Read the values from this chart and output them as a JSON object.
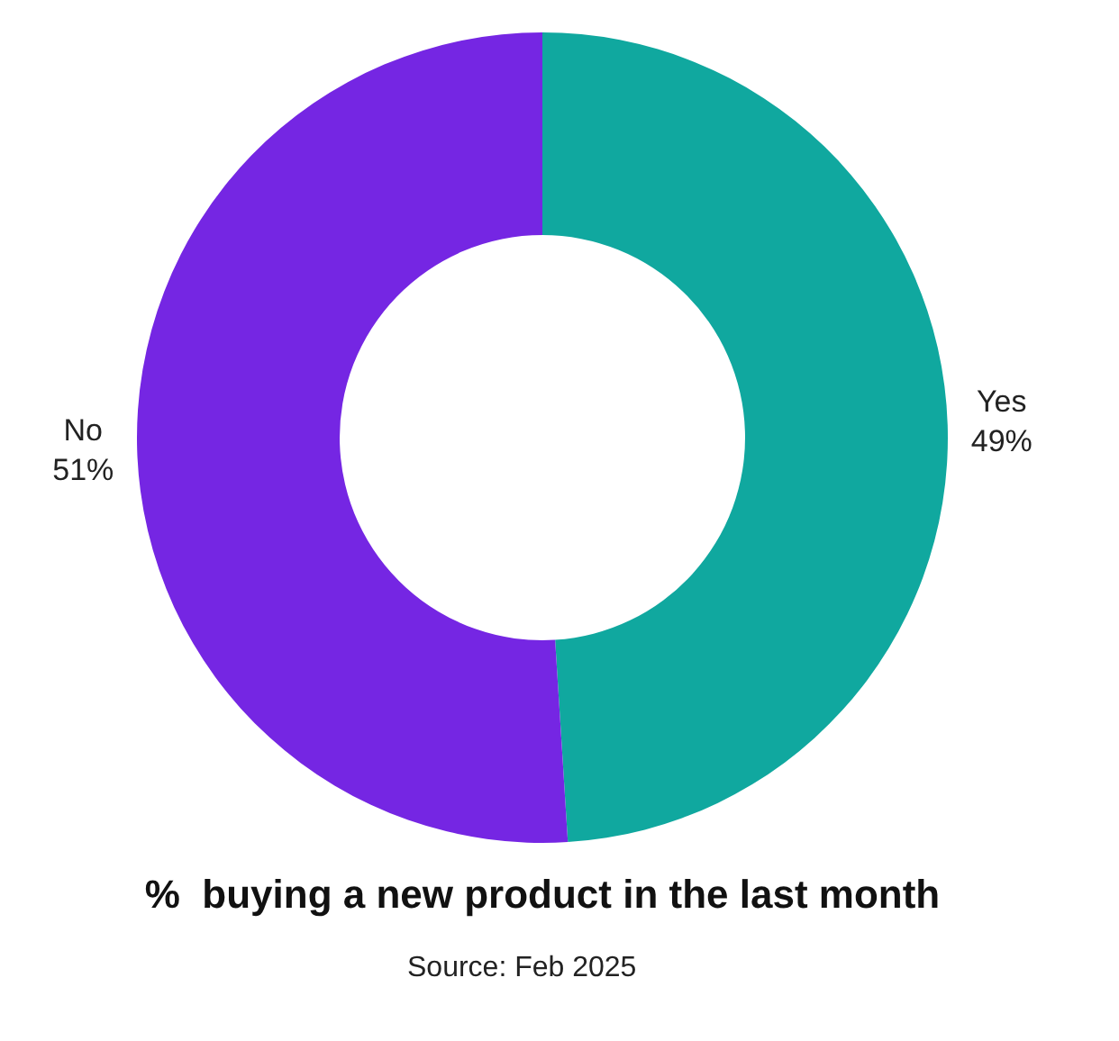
{
  "chart_data": {
    "type": "donut",
    "title": "%  buying a new product in the last month",
    "categories": [
      "Yes",
      "No"
    ],
    "values": [
      49,
      51
    ],
    "colors": [
      "#10a89f",
      "#7526e3"
    ],
    "value_labels": [
      "49%",
      "51%"
    ],
    "annotations": [
      "Source: Feb 2025"
    ],
    "legend": false
  }
}
